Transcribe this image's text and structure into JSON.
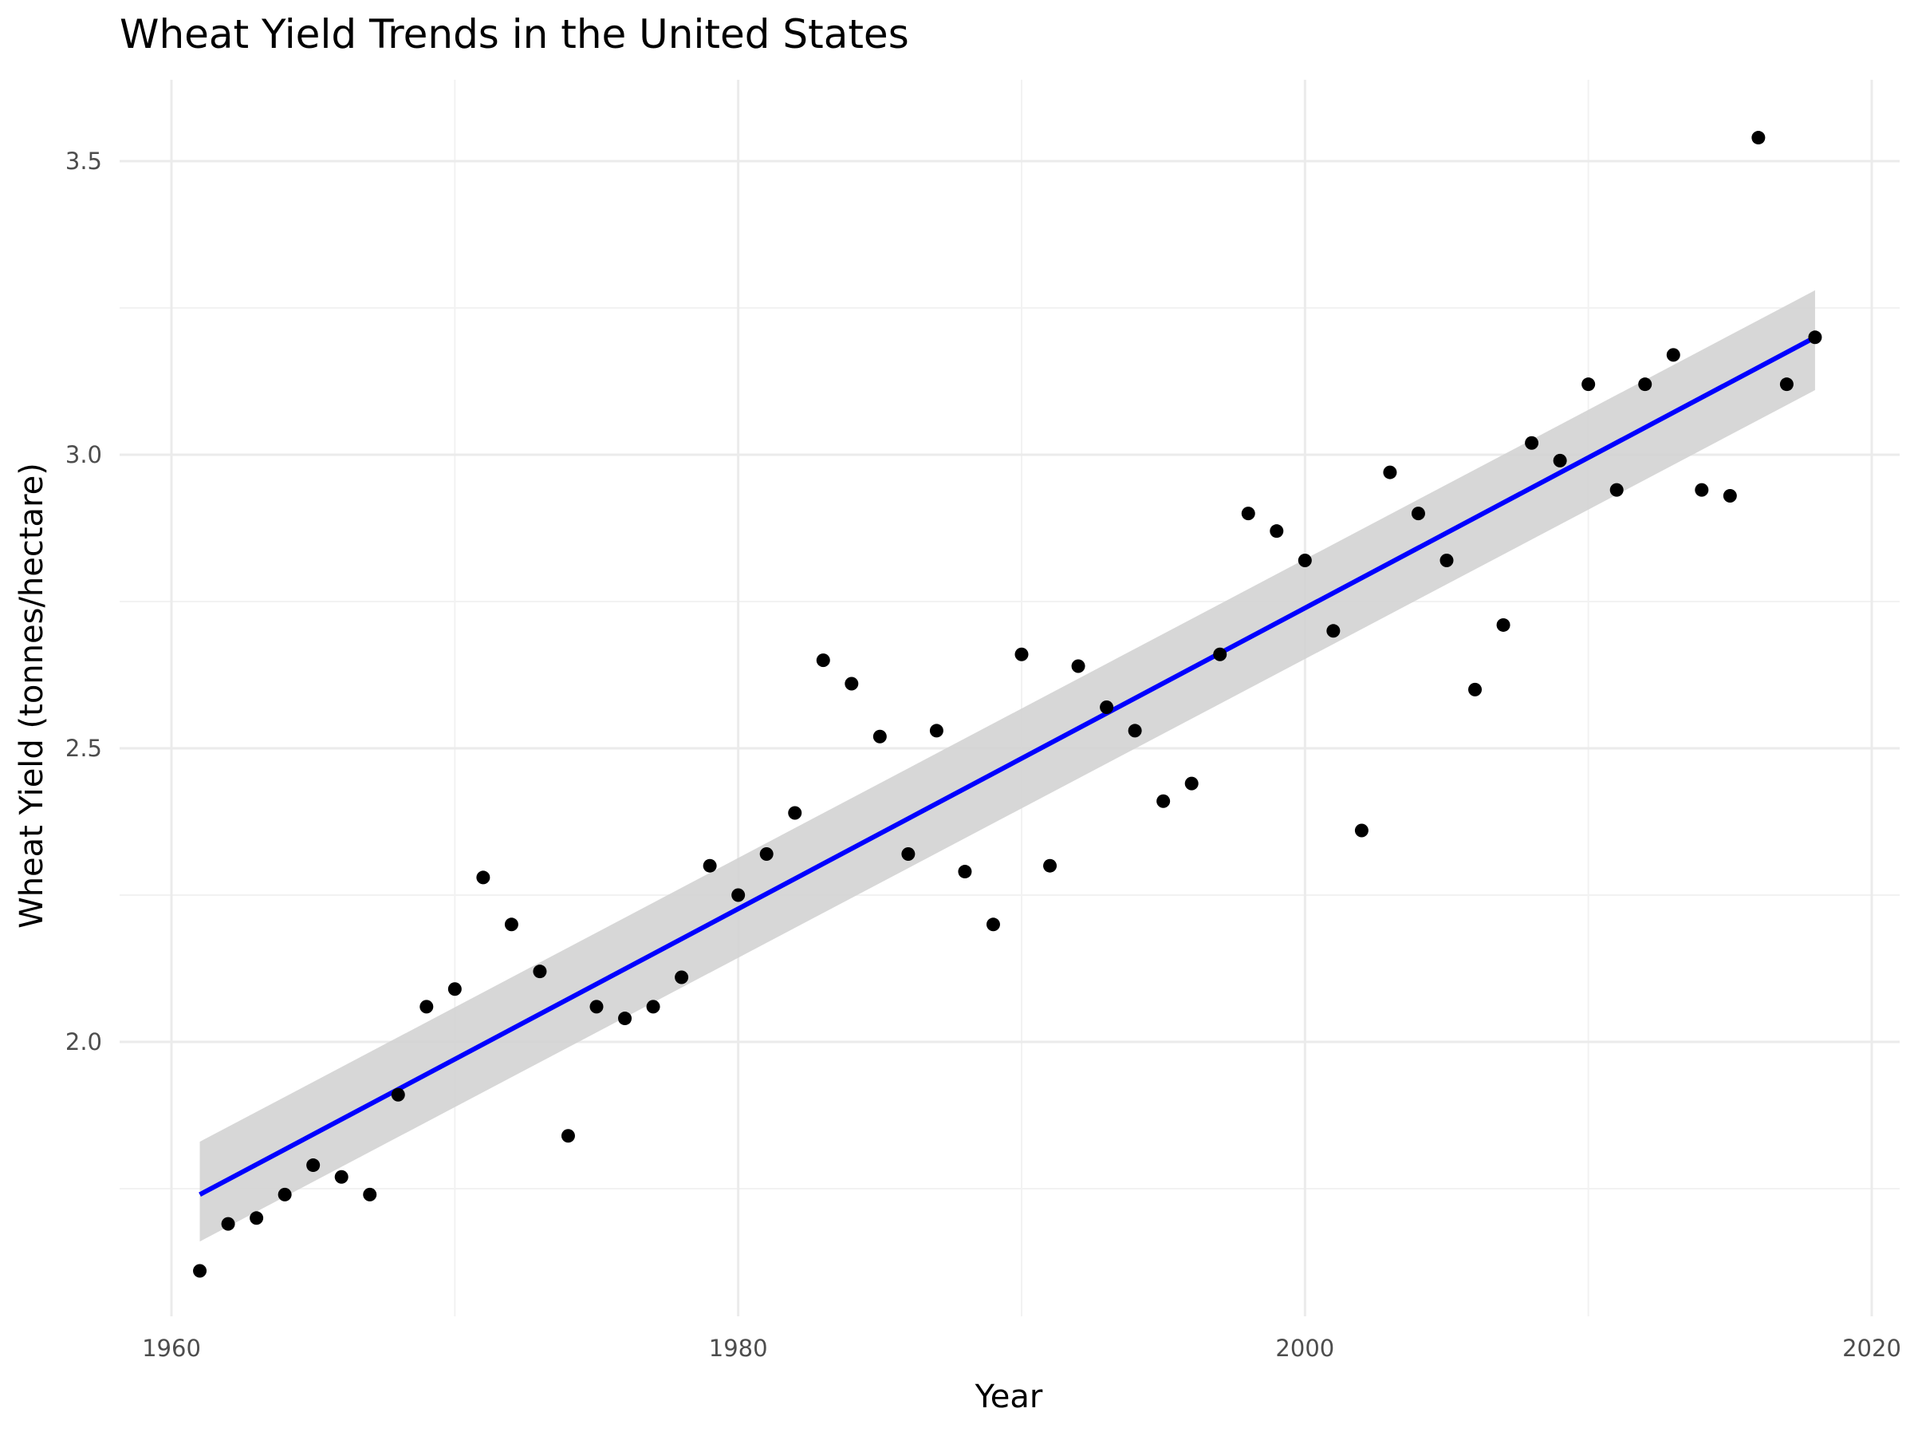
{
  "chart_data": {
    "type": "scatter",
    "title": "Wheat Yield Trends in the United States",
    "xlabel": "Year",
    "ylabel": "Wheat Yield (tonnes/hectare)",
    "xlim": [
      1960,
      2020
    ],
    "ylim": [
      1.5,
      3.6
    ],
    "x_ticks": [
      1960,
      1980,
      2000,
      2020
    ],
    "y_ticks": [
      2.0,
      2.5,
      3.0,
      3.5
    ],
    "x_tick_labels": [
      "1960",
      "1980",
      "2000",
      "2020"
    ],
    "y_tick_labels": [
      "2.0",
      "2.5",
      "3.0",
      "3.5"
    ],
    "grid": true,
    "legend": "none",
    "point_color": "#000000",
    "points": [
      {
        "x": 1961,
        "y": 1.61
      },
      {
        "x": 1962,
        "y": 1.69
      },
      {
        "x": 1963,
        "y": 1.7
      },
      {
        "x": 1964,
        "y": 1.74
      },
      {
        "x": 1965,
        "y": 1.79
      },
      {
        "x": 1966,
        "y": 1.77
      },
      {
        "x": 1967,
        "y": 1.74
      },
      {
        "x": 1968,
        "y": 1.91
      },
      {
        "x": 1969,
        "y": 2.06
      },
      {
        "x": 1970,
        "y": 2.09
      },
      {
        "x": 1971,
        "y": 2.28
      },
      {
        "x": 1972,
        "y": 2.2
      },
      {
        "x": 1973,
        "y": 2.12
      },
      {
        "x": 1974,
        "y": 1.84
      },
      {
        "x": 1975,
        "y": 2.06
      },
      {
        "x": 1976,
        "y": 2.04
      },
      {
        "x": 1977,
        "y": 2.06
      },
      {
        "x": 1978,
        "y": 2.11
      },
      {
        "x": 1979,
        "y": 2.3
      },
      {
        "x": 1980,
        "y": 2.25
      },
      {
        "x": 1981,
        "y": 2.32
      },
      {
        "x": 1982,
        "y": 2.39
      },
      {
        "x": 1983,
        "y": 2.65
      },
      {
        "x": 1984,
        "y": 2.61
      },
      {
        "x": 1985,
        "y": 2.52
      },
      {
        "x": 1986,
        "y": 2.32
      },
      {
        "x": 1987,
        "y": 2.53
      },
      {
        "x": 1988,
        "y": 2.29
      },
      {
        "x": 1989,
        "y": 2.2
      },
      {
        "x": 1990,
        "y": 2.66
      },
      {
        "x": 1991,
        "y": 2.3
      },
      {
        "x": 1992,
        "y": 2.64
      },
      {
        "x": 1993,
        "y": 2.57
      },
      {
        "x": 1994,
        "y": 2.53
      },
      {
        "x": 1995,
        "y": 2.41
      },
      {
        "x": 1996,
        "y": 2.44
      },
      {
        "x": 1997,
        "y": 2.66
      },
      {
        "x": 1998,
        "y": 2.9
      },
      {
        "x": 1999,
        "y": 2.87
      },
      {
        "x": 2000,
        "y": 2.82
      },
      {
        "x": 2001,
        "y": 2.7
      },
      {
        "x": 2002,
        "y": 2.36
      },
      {
        "x": 2003,
        "y": 2.97
      },
      {
        "x": 2004,
        "y": 2.9
      },
      {
        "x": 2005,
        "y": 2.82
      },
      {
        "x": 2006,
        "y": 2.6
      },
      {
        "x": 2007,
        "y": 2.71
      },
      {
        "x": 2008,
        "y": 3.02
      },
      {
        "x": 2009,
        "y": 2.99
      },
      {
        "x": 2010,
        "y": 3.12
      },
      {
        "x": 2011,
        "y": 2.94
      },
      {
        "x": 2012,
        "y": 3.12
      },
      {
        "x": 2013,
        "y": 3.17
      },
      {
        "x": 2014,
        "y": 2.94
      },
      {
        "x": 2015,
        "y": 2.93
      },
      {
        "x": 2016,
        "y": 3.54
      },
      {
        "x": 2017,
        "y": 3.12
      },
      {
        "x": 2018,
        "y": 3.2
      }
    ],
    "trend_line": {
      "method": "linear",
      "color": "#0000ff",
      "x": [
        1961,
        2018
      ],
      "y": [
        1.74,
        3.2
      ],
      "ci_lower": [
        1.66,
        3.11
      ],
      "ci_upper": [
        1.83,
        3.28
      ],
      "ci_fill": "#d3d3d3"
    }
  }
}
